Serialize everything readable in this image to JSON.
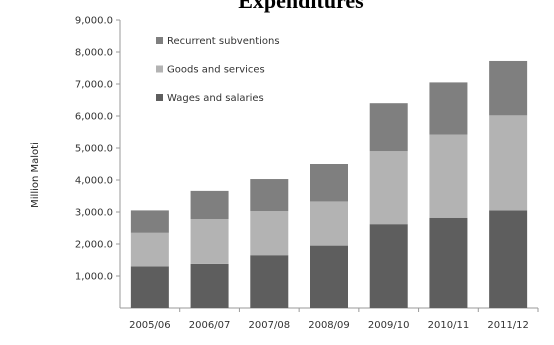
{
  "chart_data": {
    "type": "bar",
    "stacked": true,
    "title": "Expenditures",
    "ylabel": "Million Maloti",
    "xlabel": "",
    "ylim": [
      0,
      9000
    ],
    "ytick_values": [
      1000,
      2000,
      3000,
      4000,
      5000,
      6000,
      7000,
      8000,
      9000
    ],
    "ytick_labels": [
      "1,000.0",
      "2,000.0",
      "3,000.0",
      "4,000.0",
      "5,000.0",
      "6,000.0",
      "7,000.0",
      "8,000.0",
      "9,000.0"
    ],
    "grid": false,
    "legend_position": "top-left",
    "categories": [
      "2005/06",
      "2006/07",
      "2007/08",
      "2008/09",
      "2009/10",
      "2010/11",
      "2011/12"
    ],
    "series": [
      {
        "name": "Wages and salaries",
        "color": "#5e5e5e",
        "values": [
          1300,
          1380,
          1650,
          1950,
          2620,
          2820,
          3050
        ]
      },
      {
        "name": "Goods and services",
        "color": "#b3b3b3",
        "values": [
          1050,
          1400,
          1380,
          1380,
          2280,
          2600,
          2970
        ]
      },
      {
        "name": "Recurrent subventions",
        "color": "#7f7f7f",
        "values": [
          700,
          880,
          1000,
          1170,
          1500,
          1630,
          1700
        ]
      }
    ],
    "legend_order": [
      "Recurrent subventions",
      "Goods and services",
      "Wages and salaries"
    ]
  }
}
